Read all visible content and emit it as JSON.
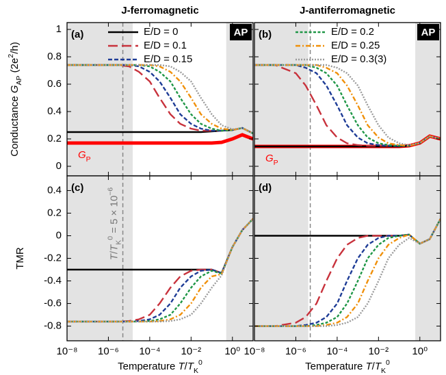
{
  "chart_data": [
    {
      "type": "line",
      "title": "J-ferromagnetic",
      "panel_label": "(a)",
      "badge": "AP",
      "ylabel": [
        {
          "text": "Conductance "
        },
        {
          "text": "G",
          "style": "italic"
        },
        {
          "text": "AP",
          "style": "sub"
        },
        {
          "text": " (2e"
        },
        {
          "text": "2",
          "style": "sup"
        },
        {
          "text": "/h)"
        }
      ],
      "xscale": "log",
      "xlim": [
        1e-08,
        10
      ],
      "ylim": [
        -0.07,
        1.05
      ],
      "xticks": [
        1e-08,
        1e-06,
        0.0001,
        0.01,
        1
      ],
      "yticks": [
        0,
        0.2,
        0.4,
        0.6,
        0.8,
        1
      ],
      "show_ytick_labels": true,
      "show_xtick_labels": false,
      "shaded": [
        [
          1e-08,
          1.5e-05
        ],
        [
          0.5,
          10
        ]
      ],
      "vline": 5e-06,
      "x": [
        1e-08,
        1e-07,
        1e-06,
        3e-06,
        1e-05,
        3e-05,
        0.0001,
        0.0003,
        0.001,
        0.003,
        0.01,
        0.03,
        0.1,
        0.3,
        1,
        3,
        10
      ],
      "series": [
        {
          "color": "#ff0000",
          "style": "thick",
          "label": [
            {
              "text": "G",
              "style": "italic"
            },
            {
              "text": "P",
              "style": "sub"
            }
          ],
          "values": [
            0.17,
            0.17,
            0.17,
            0.17,
            0.17,
            0.17,
            0.17,
            0.17,
            0.17,
            0.17,
            0.17,
            0.17,
            0.17,
            0.175,
            0.2,
            0.23,
            0.2
          ]
        },
        {
          "name": "E/D = 0",
          "color": "#000000",
          "style": "solid",
          "values": [
            0.25,
            0.25,
            0.25,
            0.25,
            0.25,
            0.25,
            0.25,
            0.25,
            0.25,
            0.25,
            0.25,
            0.25,
            0.255,
            0.26,
            0.265,
            0.28,
            0.24
          ]
        },
        {
          "name": "E/D = 0.1",
          "color": "#c8323c",
          "style": "long-dash",
          "values": [
            0.74,
            0.74,
            0.74,
            0.74,
            0.73,
            0.69,
            0.62,
            0.5,
            0.38,
            0.31,
            0.275,
            0.26,
            0.26,
            0.26,
            0.265,
            0.28,
            0.24
          ]
        },
        {
          "name": "E/D = 0.15",
          "color": "#1e3c96",
          "style": "dash",
          "values": [
            0.74,
            0.74,
            0.74,
            0.74,
            0.74,
            0.73,
            0.69,
            0.62,
            0.5,
            0.38,
            0.31,
            0.275,
            0.26,
            0.26,
            0.265,
            0.28,
            0.24
          ]
        },
        {
          "color": "#1e9646",
          "style": "short-dash",
          "values": [
            0.74,
            0.74,
            0.74,
            0.74,
            0.74,
            0.74,
            0.73,
            0.69,
            0.62,
            0.5,
            0.38,
            0.31,
            0.275,
            0.26,
            0.265,
            0.28,
            0.24
          ]
        },
        {
          "color": "#f0900a",
          "style": "dash-dot",
          "values": [
            0.74,
            0.74,
            0.74,
            0.74,
            0.74,
            0.74,
            0.74,
            0.73,
            0.69,
            0.62,
            0.5,
            0.38,
            0.31,
            0.275,
            0.265,
            0.28,
            0.24
          ]
        },
        {
          "color": "#9a9a9a",
          "style": "dot",
          "values": [
            0.74,
            0.74,
            0.74,
            0.74,
            0.74,
            0.74,
            0.74,
            0.74,
            0.73,
            0.69,
            0.62,
            0.5,
            0.38,
            0.3,
            0.27,
            0.28,
            0.24
          ]
        }
      ]
    },
    {
      "type": "line",
      "title": "J-antiferromagnetic",
      "panel_label": "(b)",
      "badge": "AP",
      "xscale": "log",
      "xlim": [
        1e-08,
        10
      ],
      "ylim": [
        -0.07,
        1.05
      ],
      "xticks": [
        1e-08,
        1e-06,
        0.0001,
        0.01,
        1
      ],
      "yticks": [
        0,
        0.2,
        0.4,
        0.6,
        0.8,
        1
      ],
      "show_ytick_labels": false,
      "show_xtick_labels": false,
      "shaded": [
        [
          1e-08,
          4e-06
        ],
        [
          0.6,
          10
        ]
      ],
      "vline": 5e-06,
      "x": [
        1e-08,
        1e-07,
        1e-06,
        3e-06,
        1e-05,
        3e-05,
        0.0001,
        0.0003,
        0.001,
        0.003,
        0.01,
        0.03,
        0.1,
        0.3,
        1,
        3,
        10
      ],
      "series": [
        {
          "color": "#ff0000",
          "style": "thick",
          "label": [
            {
              "text": "G",
              "style": "italic"
            },
            {
              "text": "P",
              "style": "sub"
            }
          ],
          "values": [
            0.145,
            0.145,
            0.145,
            0.145,
            0.145,
            0.145,
            0.145,
            0.145,
            0.145,
            0.145,
            0.145,
            0.145,
            0.145,
            0.15,
            0.17,
            0.22,
            0.2
          ]
        },
        {
          "color": "#000000",
          "style": "solid",
          "values": [
            0.145,
            0.145,
            0.145,
            0.145,
            0.145,
            0.145,
            0.145,
            0.145,
            0.145,
            0.145,
            0.145,
            0.145,
            0.145,
            0.15,
            0.17,
            0.22,
            0.2
          ]
        },
        {
          "color": "#c8323c",
          "style": "long-dash",
          "values": [
            0.74,
            0.74,
            0.68,
            0.59,
            0.445,
            0.3,
            0.21,
            0.168,
            0.155,
            0.15,
            0.15,
            0.15,
            0.15,
            0.15,
            0.17,
            0.22,
            0.2
          ]
        },
        {
          "color": "#1e3c96",
          "style": "dash",
          "values": [
            0.74,
            0.74,
            0.74,
            0.72,
            0.68,
            0.59,
            0.445,
            0.3,
            0.21,
            0.168,
            0.155,
            0.15,
            0.15,
            0.15,
            0.17,
            0.22,
            0.2
          ]
        },
        {
          "name": "E/D = 0.2",
          "color": "#1e9646",
          "style": "short-dash",
          "values": [
            0.74,
            0.74,
            0.74,
            0.74,
            0.72,
            0.68,
            0.59,
            0.445,
            0.3,
            0.21,
            0.168,
            0.155,
            0.15,
            0.15,
            0.17,
            0.22,
            0.2
          ]
        },
        {
          "name": "E/D = 0.25",
          "color": "#f0900a",
          "style": "dash-dot",
          "values": [
            0.74,
            0.74,
            0.74,
            0.74,
            0.74,
            0.72,
            0.68,
            0.59,
            0.445,
            0.3,
            0.21,
            0.168,
            0.155,
            0.15,
            0.17,
            0.22,
            0.2
          ]
        },
        {
          "name": "E/D = 0.3(3)",
          "color": "#9a9a9a",
          "style": "dot",
          "values": [
            0.74,
            0.74,
            0.74,
            0.74,
            0.74,
            0.74,
            0.72,
            0.68,
            0.59,
            0.445,
            0.3,
            0.21,
            0.168,
            0.155,
            0.17,
            0.22,
            0.2
          ]
        }
      ]
    },
    {
      "type": "line",
      "panel_label": "(c)",
      "ylabel": [
        {
          "text": "TMR"
        }
      ],
      "xlabel": [
        {
          "text": "Temperature "
        },
        {
          "text": "T",
          "style": "italic"
        },
        {
          "text": "/"
        },
        {
          "text": "T",
          "style": "italic"
        },
        {
          "text": "K",
          "style": "sub"
        },
        {
          "text": "0",
          "style": "sup"
        }
      ],
      "annotation": [
        {
          "text": "T",
          "style": "italic"
        },
        {
          "text": "/"
        },
        {
          "text": "T",
          "style": "italic"
        },
        {
          "text": "K",
          "style": "sub"
        },
        {
          "text": "0",
          "style": "sup"
        },
        {
          "text": " = 5 × 10"
        },
        {
          "text": "−6",
          "style": "sup"
        }
      ],
      "xscale": "log",
      "xlim": [
        1e-08,
        10
      ],
      "ylim": [
        -0.93,
        0.53
      ],
      "xticks": [
        {
          "value": 1e-08,
          "label": "10⁻⁸"
        },
        {
          "value": 1e-06,
          "label": "10⁻⁶"
        },
        {
          "value": 0.0001,
          "label": "10⁻⁴"
        },
        {
          "value": 0.01,
          "label": "10⁻²"
        },
        {
          "value": 1,
          "label": "10⁰"
        }
      ],
      "yticks": [
        0.4,
        0.2,
        0,
        -0.2,
        -0.4,
        -0.6,
        -0.8
      ],
      "show_ytick_labels": true,
      "show_xtick_labels": true,
      "shaded": [
        [
          1e-08,
          1.5e-05
        ],
        [
          0.5,
          10
        ]
      ],
      "vline": 5e-06,
      "x": [
        1e-08,
        1e-07,
        1e-06,
        3e-06,
        1e-05,
        3e-05,
        0.0001,
        0.0003,
        0.001,
        0.003,
        0.01,
        0.03,
        0.1,
        0.3,
        1,
        3,
        10
      ],
      "series": [
        {
          "color": "#000000",
          "style": "solid",
          "values": [
            -0.3,
            -0.3,
            -0.3,
            -0.3,
            -0.3,
            -0.3,
            -0.3,
            -0.3,
            -0.3,
            -0.3,
            -0.3,
            -0.3,
            -0.3,
            -0.33,
            -0.1,
            0.05,
            0.15
          ]
        },
        {
          "color": "#c8323c",
          "style": "long-dash",
          "values": [
            -0.76,
            -0.76,
            -0.76,
            -0.76,
            -0.755,
            -0.74,
            -0.7,
            -0.6,
            -0.46,
            -0.36,
            -0.31,
            -0.3,
            -0.3,
            -0.33,
            -0.1,
            0.05,
            0.15
          ]
        },
        {
          "color": "#1e3c96",
          "style": "dash",
          "values": [
            -0.76,
            -0.76,
            -0.76,
            -0.76,
            -0.76,
            -0.755,
            -0.74,
            -0.7,
            -0.6,
            -0.46,
            -0.36,
            -0.31,
            -0.3,
            -0.33,
            -0.1,
            0.05,
            0.15
          ]
        },
        {
          "color": "#1e9646",
          "style": "short-dash",
          "values": [
            -0.76,
            -0.76,
            -0.76,
            -0.76,
            -0.76,
            -0.76,
            -0.755,
            -0.74,
            -0.7,
            -0.6,
            -0.46,
            -0.36,
            -0.31,
            -0.335,
            -0.1,
            0.05,
            0.15
          ]
        },
        {
          "color": "#f0900a",
          "style": "dash-dot",
          "values": [
            -0.76,
            -0.76,
            -0.76,
            -0.76,
            -0.76,
            -0.76,
            -0.76,
            -0.755,
            -0.74,
            -0.7,
            -0.6,
            -0.46,
            -0.36,
            -0.34,
            -0.1,
            0.05,
            0.15
          ]
        },
        {
          "color": "#9a9a9a",
          "style": "dot",
          "values": [
            -0.76,
            -0.76,
            -0.76,
            -0.76,
            -0.76,
            -0.76,
            -0.76,
            -0.76,
            -0.755,
            -0.74,
            -0.7,
            -0.6,
            -0.46,
            -0.35,
            -0.1,
            0.05,
            0.15
          ]
        }
      ]
    },
    {
      "type": "line",
      "panel_label": "(d)",
      "xlabel": [
        {
          "text": "Temperature "
        },
        {
          "text": "T",
          "style": "italic"
        },
        {
          "text": "/"
        },
        {
          "text": "T",
          "style": "italic"
        },
        {
          "text": "K",
          "style": "sub"
        },
        {
          "text": "0",
          "style": "sup"
        }
      ],
      "xscale": "log",
      "xlim": [
        1e-08,
        10
      ],
      "ylim": [
        -0.93,
        0.53
      ],
      "xticks": [
        {
          "value": 1e-08,
          "label": "10⁻⁸"
        },
        {
          "value": 1e-06,
          "label": "10⁻⁶"
        },
        {
          "value": 0.0001,
          "label": "10⁻⁴"
        },
        {
          "value": 0.01,
          "label": "10⁻²"
        },
        {
          "value": 1,
          "label": "10⁰"
        }
      ],
      "yticks": [
        0.4,
        0.2,
        0,
        -0.2,
        -0.4,
        -0.6,
        -0.8
      ],
      "show_ytick_labels": false,
      "show_xtick_labels": true,
      "shaded": [
        [
          1e-08,
          4e-06
        ],
        [
          0.6,
          10
        ]
      ],
      "vline": 5e-06,
      "x": [
        1e-08,
        1e-07,
        1e-06,
        3e-06,
        1e-05,
        3e-05,
        0.0001,
        0.0003,
        0.001,
        0.003,
        0.01,
        0.03,
        0.1,
        0.3,
        1,
        3,
        10
      ],
      "series": [
        {
          "color": "#000000",
          "style": "solid",
          "values": [
            0,
            0,
            0,
            0,
            0,
            0,
            0,
            0,
            0,
            0,
            0,
            0,
            0,
            0.01,
            -0.07,
            -0.03,
            0.15
          ]
        },
        {
          "color": "#c8323c",
          "style": "long-dash",
          "values": [
            -0.8,
            -0.8,
            -0.77,
            -0.72,
            -0.6,
            -0.4,
            -0.2,
            -0.08,
            -0.02,
            0,
            0,
            0,
            0,
            0.01,
            -0.07,
            -0.03,
            0.15
          ]
        },
        {
          "color": "#1e3c96",
          "style": "dash",
          "values": [
            -0.8,
            -0.8,
            -0.8,
            -0.79,
            -0.77,
            -0.72,
            -0.6,
            -0.4,
            -0.2,
            -0.08,
            -0.02,
            0,
            0,
            0.01,
            -0.07,
            -0.03,
            0.15
          ]
        },
        {
          "color": "#1e9646",
          "style": "short-dash",
          "values": [
            -0.8,
            -0.8,
            -0.8,
            -0.8,
            -0.79,
            -0.77,
            -0.72,
            -0.6,
            -0.4,
            -0.2,
            -0.08,
            -0.02,
            0,
            0.01,
            -0.07,
            -0.03,
            0.15
          ]
        },
        {
          "color": "#f0900a",
          "style": "dash-dot",
          "values": [
            -0.8,
            -0.8,
            -0.8,
            -0.8,
            -0.8,
            -0.79,
            -0.77,
            -0.72,
            -0.6,
            -0.4,
            -0.2,
            -0.08,
            -0.02,
            0.01,
            -0.07,
            -0.03,
            0.15
          ]
        },
        {
          "color": "#9a9a9a",
          "style": "dot",
          "values": [
            -0.8,
            -0.8,
            -0.8,
            -0.8,
            -0.8,
            -0.8,
            -0.79,
            -0.77,
            -0.72,
            -0.6,
            -0.4,
            -0.2,
            -0.08,
            -0.02,
            -0.07,
            -0.03,
            0.15
          ]
        }
      ]
    }
  ]
}
